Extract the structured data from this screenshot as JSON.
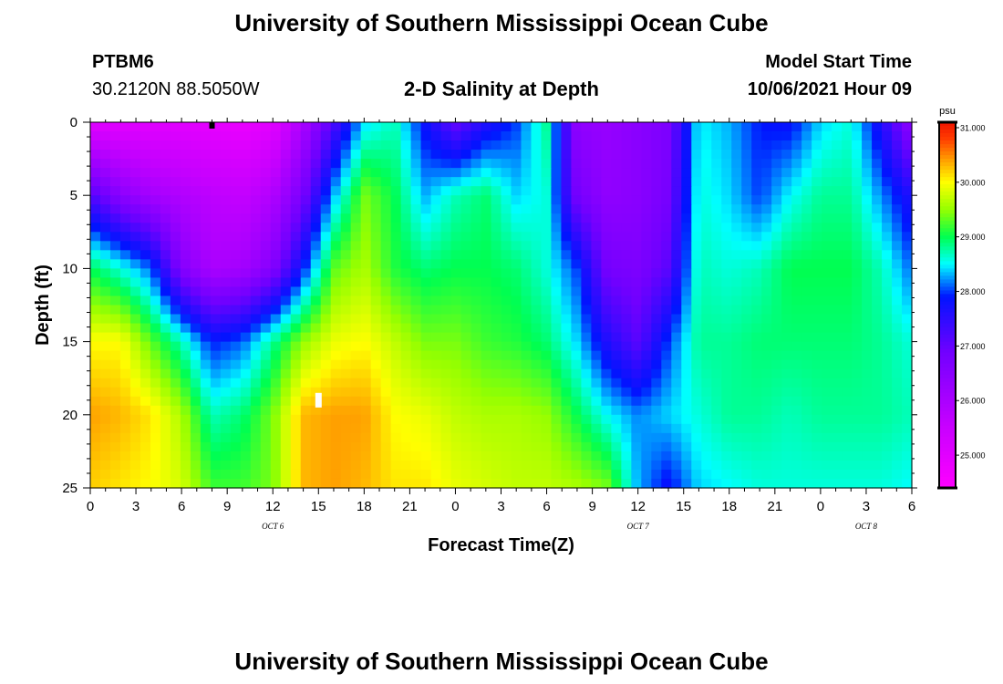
{
  "header": {
    "title": "University of Southern Mississippi Ocean Cube",
    "station": "PTBM6",
    "location": "30.2120N  88.5050W",
    "plot_title": "2-D Salinity at Depth",
    "model_label": "Model Start Time",
    "model_time": "10/06/2021 Hour 09"
  },
  "footer": {
    "title": "University of Southern Mississippi Ocean Cube"
  },
  "colorbar": {
    "unit": "psu",
    "tick_labels": [
      "31.000",
      "30.000",
      "29.000",
      "28.000",
      "27.000",
      "26.000",
      "25.000"
    ],
    "tick_values": [
      31,
      30,
      29,
      28,
      27,
      26,
      25
    ],
    "range": [
      24.4,
      31.1
    ]
  },
  "chart_data": {
    "type": "heatmap",
    "title": "2-D Salinity at Depth",
    "xlabel": "Forecast Time(Z)",
    "ylabel": "Depth (ft)",
    "xlim": [
      0,
      54
    ],
    "ylim": [
      0,
      25
    ],
    "x_tick_values": [
      0,
      3,
      6,
      9,
      12,
      15,
      18,
      21,
      24,
      27,
      30,
      33,
      36,
      39,
      42,
      45,
      48,
      51,
      54
    ],
    "x_tick_labels": [
      "0",
      "3",
      "6",
      "9",
      "12",
      "15",
      "18",
      "21",
      "0",
      "3",
      "6",
      "9",
      "12",
      "15",
      "18",
      "21",
      "0",
      "3",
      "6"
    ],
    "y_tick_values": [
      0,
      5,
      10,
      15,
      20,
      25
    ],
    "y_tick_labels": [
      "0",
      "5",
      "10",
      "15",
      "20",
      "25"
    ],
    "date_labels": [
      {
        "x": 12,
        "label": "OCT 6"
      },
      {
        "x": 36,
        "label": "OCT 7"
      },
      {
        "x": 51,
        "label": "OCT 8"
      }
    ],
    "grid_x": [
      0,
      2,
      4,
      6,
      8,
      10,
      12,
      14,
      16,
      18,
      20,
      22,
      24,
      26,
      28,
      30,
      32,
      34,
      36,
      38,
      40,
      42,
      44,
      46,
      48,
      50,
      52,
      54
    ],
    "grid_depth": [
      0,
      5,
      10,
      15,
      20,
      25
    ],
    "salinity_psu": [
      [
        25.0,
        25.0,
        25.0,
        25.0,
        24.9,
        24.8,
        25.0,
        26.0,
        27.2,
        28.4,
        28.7,
        27.8,
        27.0,
        27.6,
        28.0,
        28.8,
        26.4,
        26.3,
        26.5,
        26.7,
        28.5,
        28.3,
        27.9,
        27.8,
        28.4,
        28.6,
        27.6,
        26.4
      ],
      [
        27.2,
        26.5,
        26.1,
        25.9,
        25.7,
        25.6,
        25.9,
        26.8,
        28.3,
        29.4,
        29.0,
        28.3,
        28.7,
        28.9,
        28.4,
        28.6,
        26.8,
        26.4,
        26.5,
        26.8,
        28.6,
        28.4,
        28.0,
        28.5,
        28.8,
        28.8,
        28.2,
        27.6
      ],
      [
        29.0,
        28.6,
        28.1,
        26.6,
        26.0,
        26.1,
        26.6,
        27.9,
        29.3,
        29.6,
        29.1,
        28.9,
        29.0,
        29.0,
        28.9,
        28.6,
        28.0,
        26.8,
        26.7,
        27.1,
        28.7,
        28.6,
        28.7,
        29.0,
        29.0,
        29.0,
        28.7,
        28.1
      ],
      [
        30.0,
        30.0,
        29.3,
        28.7,
        27.9,
        28.1,
        28.8,
        29.5,
        29.9,
        30.0,
        29.7,
        29.4,
        29.4,
        29.2,
        29.1,
        28.9,
        28.4,
        27.6,
        27.1,
        28.0,
        28.8,
        28.8,
        28.9,
        28.9,
        28.9,
        28.9,
        28.8,
        28.6
      ],
      [
        30.4,
        30.3,
        30.1,
        29.6,
        28.7,
        28.9,
        29.4,
        30.3,
        30.4,
        30.4,
        30.0,
        29.9,
        29.7,
        29.6,
        29.6,
        29.5,
        29.0,
        28.5,
        28.2,
        28.4,
        28.6,
        28.8,
        28.8,
        28.7,
        28.8,
        28.8,
        28.8,
        28.7
      ],
      [
        30.2,
        30.1,
        30.0,
        29.8,
        29.2,
        29.2,
        29.4,
        30.3,
        30.4,
        30.3,
        30.1,
        30.1,
        29.9,
        29.8,
        29.7,
        29.7,
        29.6,
        29.4,
        28.3,
        27.8,
        28.4,
        28.5,
        28.6,
        28.6,
        28.6,
        28.6,
        28.6,
        28.5
      ]
    ],
    "markers": [
      {
        "x": 8,
        "depth": 0.2,
        "color": "#000000"
      },
      {
        "x": 15,
        "depth": 19,
        "color": "#ffffff"
      }
    ]
  }
}
